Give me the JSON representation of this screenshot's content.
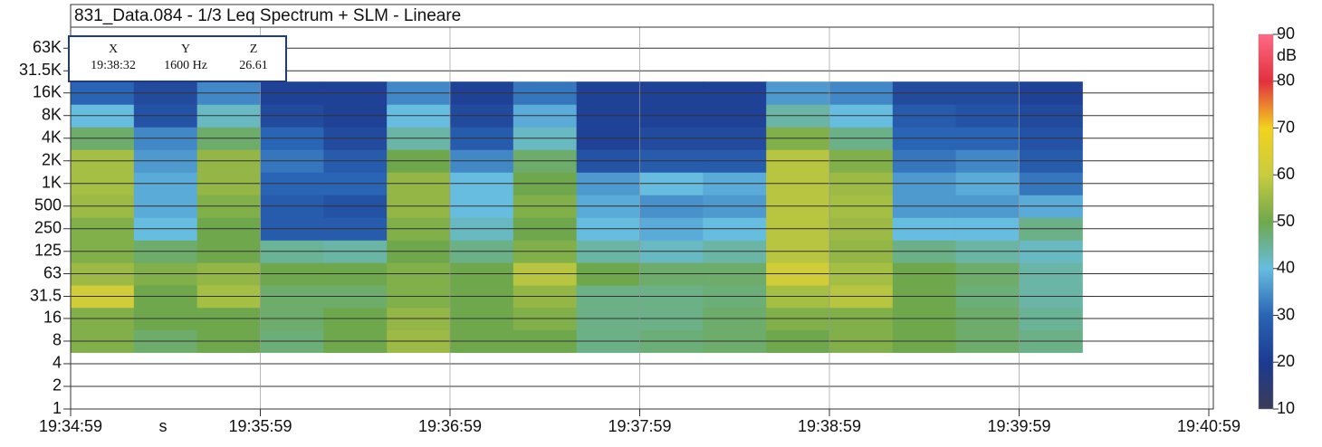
{
  "chart_data": {
    "type": "heatmap",
    "title": "831_Data.084 - 1/3 Leq Spectrum + SLM - Lineare",
    "x_label": "s",
    "x": [
      "19:35:09",
      "19:35:29",
      "19:35:49",
      "19:36:09",
      "19:36:29",
      "19:36:49",
      "19:37:09",
      "19:37:29",
      "19:37:49",
      "19:38:09",
      "19:38:29",
      "19:38:49",
      "19:39:09",
      "19:39:29",
      "19:39:49",
      "19:40:09"
    ],
    "y": [
      8,
      16,
      31.5,
      63,
      125,
      250,
      500,
      1000,
      2000,
      4000,
      8000,
      16000
    ],
    "z": [
      [
        52,
        48,
        50,
        47,
        50,
        55,
        50,
        50,
        46,
        47,
        48,
        50,
        52,
        50,
        48,
        46
      ],
      [
        52,
        50,
        50,
        48,
        50,
        54,
        50,
        52,
        46,
        46,
        48,
        52,
        52,
        50,
        48,
        45
      ],
      [
        62,
        50,
        56,
        48,
        48,
        52,
        50,
        54,
        46,
        46,
        47,
        56,
        58,
        50,
        47,
        44
      ],
      [
        55,
        52,
        54,
        50,
        50,
        52,
        50,
        58,
        50,
        48,
        48,
        62,
        56,
        50,
        48,
        44
      ],
      [
        52,
        48,
        50,
        45,
        44,
        50,
        46,
        52,
        44,
        42,
        44,
        58,
        54,
        46,
        44,
        42
      ],
      [
        52,
        40,
        50,
        28,
        28,
        52,
        42,
        50,
        40,
        38,
        40,
        58,
        55,
        40,
        40,
        46
      ],
      [
        55,
        38,
        52,
        28,
        26,
        54,
        40,
        52,
        38,
        35,
        36,
        58,
        56,
        36,
        36,
        38
      ],
      [
        56,
        38,
        54,
        30,
        30,
        54,
        40,
        50,
        36,
        40,
        38,
        58,
        55,
        36,
        38,
        32
      ],
      [
        56,
        36,
        54,
        32,
        28,
        50,
        34,
        48,
        26,
        28,
        28,
        58,
        52,
        32,
        34,
        28
      ],
      [
        48,
        34,
        48,
        30,
        24,
        44,
        28,
        42,
        22,
        24,
        24,
        52,
        46,
        30,
        30,
        26
      ],
      [
        40,
        26,
        42,
        24,
        22,
        40,
        24,
        38,
        22,
        22,
        22,
        44,
        40,
        28,
        26,
        24
      ],
      [
        30,
        24,
        34,
        22,
        22,
        34,
        22,
        32,
        22,
        22,
        22,
        36,
        34,
        24,
        24,
        22
      ]
    ],
    "xlim": [
      "19:34:59",
      "19:40:59"
    ],
    "xticks": [
      "19:34:59",
      "19:35:59",
      "19:36:59",
      "19:37:59",
      "19:38:59",
      "19:39:59",
      "19:40:59"
    ],
    "y_scale": "log",
    "ylim": [
      1,
      120000
    ],
    "yticks": [
      1,
      2,
      4,
      8,
      16,
      31.5,
      63,
      125,
      250,
      500,
      {
        "value": 1000,
        "label": "1K"
      },
      {
        "value": 2000,
        "label": "2K"
      },
      {
        "value": 4000,
        "label": "4K"
      },
      {
        "value": 8000,
        "label": "8K"
      },
      {
        "value": 16000,
        "label": "16K"
      },
      {
        "value": 31500,
        "label": "31.5K"
      },
      {
        "value": 63000,
        "label": "63K"
      }
    ],
    "grid": true,
    "colorscale": [
      {
        "value": 10,
        "color": "#3a3c58"
      },
      {
        "value": 20,
        "color": "#1c3a90"
      },
      {
        "value": 30,
        "color": "#2a64b4"
      },
      {
        "value": 40,
        "color": "#66bde0"
      },
      {
        "value": 50,
        "color": "#6fa84c"
      },
      {
        "value": 60,
        "color": "#c9cc3e"
      },
      {
        "value": 70,
        "color": "#f2d21e"
      },
      {
        "value": 80,
        "color": "#e2303e"
      },
      {
        "value": 90,
        "color": "#ff6a86"
      }
    ],
    "colorbar": {
      "label": "dB",
      "lim": [
        10,
        90
      ],
      "ticks": [
        10,
        20,
        30,
        40,
        50,
        60,
        70,
        80,
        90
      ]
    },
    "cursor": {
      "x_header": "X",
      "y_header": "Y",
      "z_header": "Z",
      "x": "19:38:32",
      "y": "1600 Hz",
      "z": 26.61
    }
  }
}
